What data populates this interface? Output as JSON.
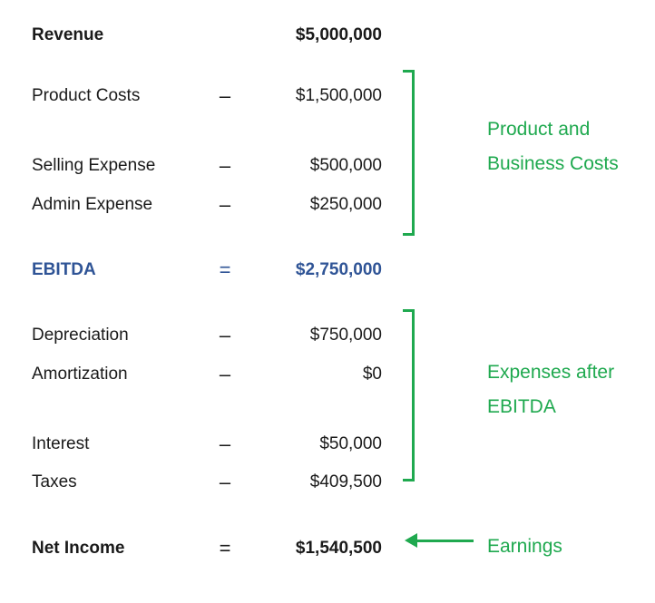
{
  "rows": {
    "revenue": {
      "label": "Revenue",
      "op": "",
      "value": "$5,000,000"
    },
    "product_costs": {
      "label": "Product Costs",
      "op": "–",
      "value": "$1,500,000"
    },
    "selling_expense": {
      "label": "Selling Expense",
      "op": "–",
      "value": "$500,000"
    },
    "admin_expense": {
      "label": "Admin Expense",
      "op": "–",
      "value": "$250,000"
    },
    "ebitda": {
      "label": "EBITDA",
      "op": "=",
      "value": "$2,750,000"
    },
    "depreciation": {
      "label": "Depreciation",
      "op": "–",
      "value": "$750,000"
    },
    "amortization": {
      "label": "Amortization",
      "op": "–",
      "value": "$0"
    },
    "interest": {
      "label": "Interest",
      "op": "–",
      "value": "$50,000"
    },
    "taxes": {
      "label": "Taxes",
      "op": "–",
      "value": "$409,500"
    },
    "net_income": {
      "label": "Net Income",
      "op": "=",
      "value": "$1,540,500"
    }
  },
  "annotations": {
    "group1": {
      "line1": "Product and",
      "line2": "Business Costs"
    },
    "group2": {
      "line1": "Expenses after",
      "line2": "EBITDA"
    },
    "earnings": "Earnings"
  },
  "colors": {
    "annotation_green": "#1fa94f",
    "ebitda_blue": "#2f5496",
    "text": "#1a1a1a"
  }
}
